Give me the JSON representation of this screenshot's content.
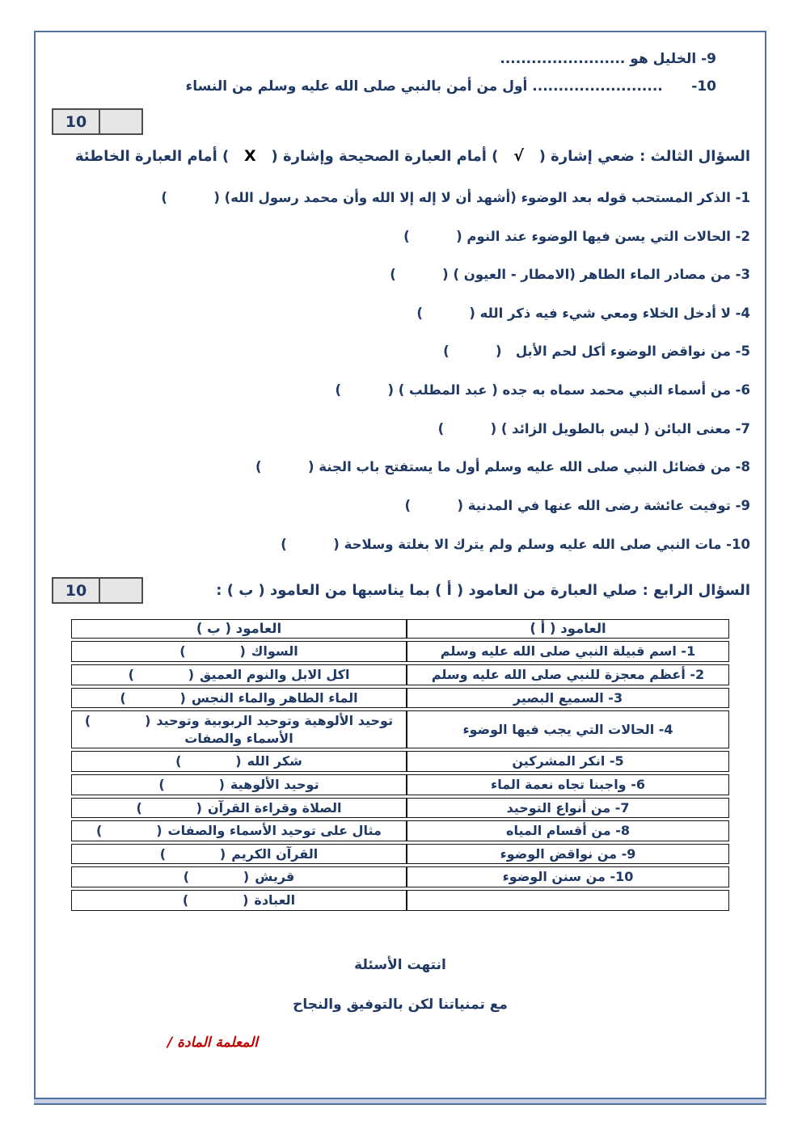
{
  "colors": {
    "text_navy": "#1f3864",
    "teacher_red": "#c00000",
    "page_border_blue": "#54719f",
    "score_box_fill": "#e7e6e6",
    "mark_black": "#000000"
  },
  "header_fill_ins": {
    "item9": "9- الخليل هو ........................",
    "item10": "10-      ......................... أول من أمن بالنبي صلى الله عليه وسلم من النساء"
  },
  "q3": {
    "score": "10",
    "title_parts": {
      "p1": "السؤال الثالث : ضعي إشارة (   ",
      "check": "√",
      "p2": "   ) أمام العبارة الصحيحة وإشارة (   ",
      "x": "X",
      "p3": "   ) أمام العبارة الخاطئة"
    },
    "items": [
      "1- الذكر المستحب قوله بعد الوضوء (أشهد أن لا إله إلا الله وأن محمد رسول الله) (          )",
      "2- الحالات التي يسن فيها الوضوء عند النوم (          )",
      "3- من مصادر الماء الطاهر (الامطار - العيون ) (          )",
      "4- لا أدخل الخلاء ومعي شيء فيه ذكر الله (          )",
      "5- من نواقض الوضوء أكل لحم الأبل   (          )",
      "6- من أسماء النبي محمد سماه به جده ( عبد المطلب ) (          )",
      "7- معنى البائن ( ليس بالطويل الزائد ) (          )",
      "8- من فضائل النبي صلى الله عليه وسلم أول ما يستفتح باب الجنة (          )",
      "9- توفيت عائشة رضى الله عنها في المدنية (          )",
      "10- مات النبي صلى الله عليه وسلم ولم يترك الا بغلتة وسلاحة (          )"
    ]
  },
  "q4": {
    "score": "10",
    "title": "السؤال الرابع : صلي العبارة من العامود ( أ ) بما يناسبها من العامود ( ب ) :",
    "table": {
      "header_a": "العامود ( أ )",
      "header_b": "العامود ( ب )",
      "blank_parens": "(            )",
      "rows": [
        {
          "a": "1- اسم قبيلة النبي صلى الله عليه وسلم",
          "b": "السواك"
        },
        {
          "a": "2- أعظم معجزة للنبي صلى الله عليه وسلم",
          "b": "اكل الابل والنوم العميق"
        },
        {
          "a": "3- السميع البصير",
          "b": "الماء الطاهر والماء النجس"
        },
        {
          "a": "4- الحالات التي يجب فيها الوضوء",
          "b": "توحيد الألوهية وتوحيد الربوبية وتوحيد الأسماء والصفات"
        },
        {
          "a": "5- انكر المشركين",
          "b": "شكر الله"
        },
        {
          "a": "6- واجبنا تجاه نعمة الماء",
          "b": "توحيد الألوهية"
        },
        {
          "a": "7- من أنواع التوحيد",
          "b": "الصلاة وقراءة القرآن"
        },
        {
          "a": "8- من أقسام المياه",
          "b": "مثال على توحيد الأسماء والصفات"
        },
        {
          "a": "9- من نواقض الوضوء",
          "b": "القرآن الكريم"
        },
        {
          "a": "10- من سنن الوضوء",
          "b": "قريش"
        },
        {
          "a": "",
          "b": "العبادة"
        }
      ]
    }
  },
  "footer": {
    "end_line": "انتهت الأسئلة",
    "wishes_line": "مع تمنياتنا لكن بالتوفيق والنجاح",
    "teacher_line": "المعلمة المادة /"
  }
}
